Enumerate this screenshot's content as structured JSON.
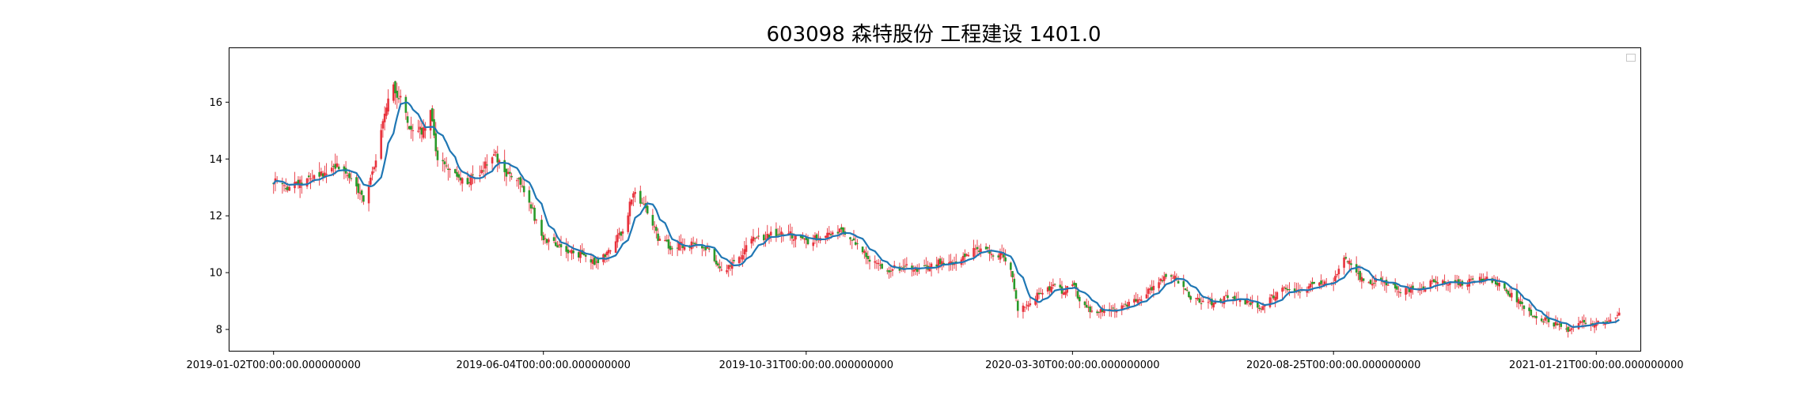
{
  "chart_data": {
    "type": "candlestick",
    "title": "603098 森特股份 工程建设 1401.0",
    "xlabel": "",
    "ylabel": "",
    "ylim": [
      7.25,
      17.9
    ],
    "grid": false,
    "legend": {
      "placement": "top-right",
      "entries": []
    },
    "yticks": [
      8,
      10,
      12,
      14,
      16
    ],
    "xticks": [
      {
        "date": "2019-01-02",
        "label": "2019-01-02T00:00:00.000000000"
      },
      {
        "date": "2019-06-04",
        "label": "2019-06-04T00:00:00.000000000"
      },
      {
        "date": "2019-10-31",
        "label": "2019-10-31T00:00:00.000000000"
      },
      {
        "date": "2020-03-30",
        "label": "2020-03-30T00:00:00.000000000"
      },
      {
        "date": "2020-08-25",
        "label": "2020-08-25T00:00:00.000000000"
      },
      {
        "date": "2021-01-21",
        "label": "2021-01-21T00:00:00.000000000"
      }
    ],
    "xlim": [
      "2018-12-08",
      "2021-02-15"
    ],
    "colors": {
      "up": "#e8323c",
      "down": "#2a9a2a",
      "ma": "#1f77b4",
      "wick": "#e8323c"
    },
    "price_path": [
      [
        "2019-01-02",
        13.2
      ],
      [
        "2019-01-10",
        13.0
      ],
      [
        "2019-01-20",
        13.2
      ],
      [
        "2019-01-28",
        13.4
      ],
      [
        "2019-02-05",
        13.8
      ],
      [
        "2019-02-15",
        13.3
      ],
      [
        "2019-02-22",
        12.6
      ],
      [
        "2019-02-28",
        13.6
      ],
      [
        "2019-03-05",
        15.3
      ],
      [
        "2019-03-10",
        16.6
      ],
      [
        "2019-03-14",
        16.2
      ],
      [
        "2019-03-20",
        15.2
      ],
      [
        "2019-03-27",
        15.0
      ],
      [
        "2019-04-01",
        15.6
      ],
      [
        "2019-04-05",
        14.0
      ],
      [
        "2019-04-12",
        13.6
      ],
      [
        "2019-04-22",
        13.2
      ],
      [
        "2019-04-30",
        13.6
      ],
      [
        "2019-05-07",
        14.2
      ],
      [
        "2019-05-14",
        13.5
      ],
      [
        "2019-05-22",
        13.1
      ],
      [
        "2019-05-28",
        12.3
      ],
      [
        "2019-06-04",
        11.1
      ],
      [
        "2019-06-12",
        11.0
      ],
      [
        "2019-06-20",
        10.7
      ],
      [
        "2019-06-28",
        10.6
      ],
      [
        "2019-07-05",
        10.3
      ],
      [
        "2019-07-12",
        10.9
      ],
      [
        "2019-07-19",
        11.5
      ],
      [
        "2019-07-25",
        12.8
      ],
      [
        "2019-08-01",
        12.3
      ],
      [
        "2019-08-08",
        11.2
      ],
      [
        "2019-08-15",
        10.9
      ],
      [
        "2019-08-25",
        11.0
      ],
      [
        "2019-09-05",
        10.8
      ],
      [
        "2019-09-12",
        10.1
      ],
      [
        "2019-09-20",
        10.3
      ],
      [
        "2019-09-26",
        10.8
      ],
      [
        "2019-09-30",
        11.2
      ],
      [
        "2019-10-10",
        11.3
      ],
      [
        "2019-10-20",
        11.4
      ],
      [
        "2019-10-31",
        11.1
      ],
      [
        "2019-11-10",
        11.3
      ],
      [
        "2019-11-20",
        11.5
      ],
      [
        "2019-11-28",
        11.0
      ],
      [
        "2019-12-05",
        10.5
      ],
      [
        "2019-12-15",
        10.1
      ],
      [
        "2019-12-25",
        10.2
      ],
      [
        "2020-01-05",
        10.1
      ],
      [
        "2020-01-15",
        10.4
      ],
      [
        "2020-01-22",
        10.3
      ],
      [
        "2020-02-03",
        10.9
      ],
      [
        "2020-02-12",
        10.7
      ],
      [
        "2020-02-20",
        10.6
      ],
      [
        "2020-02-24",
        10.2
      ],
      [
        "2020-02-28",
        8.6
      ],
      [
        "2020-03-05",
        8.9
      ],
      [
        "2020-03-12",
        9.3
      ],
      [
        "2020-03-20",
        9.5
      ],
      [
        "2020-03-25",
        9.3
      ],
      [
        "2020-03-30",
        9.6
      ],
      [
        "2020-04-05",
        8.8
      ],
      [
        "2020-04-12",
        8.6
      ],
      [
        "2020-04-22",
        8.7
      ],
      [
        "2020-05-05",
        9.0
      ],
      [
        "2020-05-15",
        9.5
      ],
      [
        "2020-05-22",
        9.9
      ],
      [
        "2020-05-28",
        9.8
      ],
      [
        "2020-06-05",
        9.1
      ],
      [
        "2020-06-15",
        8.9
      ],
      [
        "2020-06-25",
        9.1
      ],
      [
        "2020-07-05",
        9.0
      ],
      [
        "2020-07-15",
        8.8
      ],
      [
        "2020-07-22",
        9.2
      ],
      [
        "2020-07-28",
        9.5
      ],
      [
        "2020-08-05",
        9.3
      ],
      [
        "2020-08-15",
        9.6
      ],
      [
        "2020-08-25",
        9.7
      ],
      [
        "2020-08-30",
        10.6
      ],
      [
        "2020-09-05",
        10.2
      ],
      [
        "2020-09-12",
        9.6
      ],
      [
        "2020-09-20",
        9.8
      ],
      [
        "2020-10-01",
        9.4
      ],
      [
        "2020-10-12",
        9.4
      ],
      [
        "2020-10-22",
        9.7
      ],
      [
        "2020-11-05",
        9.6
      ],
      [
        "2020-11-18",
        9.8
      ],
      [
        "2020-11-28",
        9.5
      ],
      [
        "2020-12-08",
        9.0
      ],
      [
        "2020-12-16",
        8.5
      ],
      [
        "2020-12-24",
        8.3
      ],
      [
        "2021-01-05",
        8.0
      ],
      [
        "2021-01-12",
        8.3
      ],
      [
        "2021-01-21",
        8.2
      ],
      [
        "2021-01-28",
        8.3
      ],
      [
        "2021-02-03",
        8.6
      ]
    ]
  }
}
